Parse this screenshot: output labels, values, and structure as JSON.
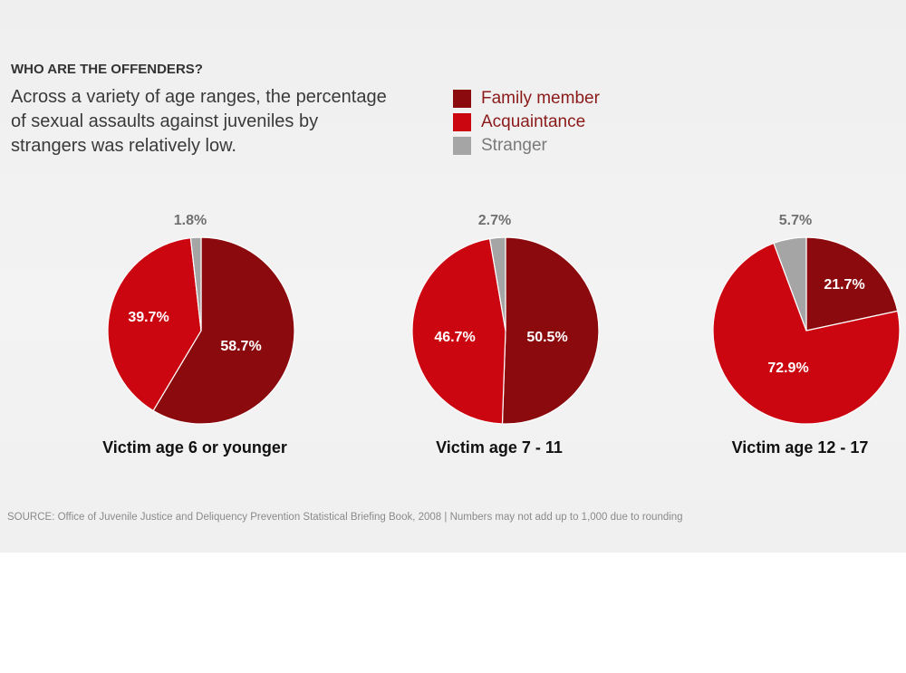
{
  "header": {
    "kicker": "WHO ARE THE OFFENDERS?",
    "subtitle": "Across a variety of age ranges, the percentage of sexual assaults against juveniles by strangers was relatively low."
  },
  "source": "SOURCE: Office of Juvenile Justice and Deliquency Prevention Statistical Briefing Book, 2008 | Numbers may not add up to 1,000 due to rounding",
  "colors": {
    "family": "#8b0a0d",
    "acquaintance": "#cc0611",
    "stranger": "#a5a5a5",
    "legend_text": "#8b1a1a",
    "stranger_text": "#7a7a7a",
    "label_text": "#ffffff",
    "outside_label": "#707070"
  },
  "chart_data": [
    {
      "type": "pie",
      "title": "Victim age 6 or younger",
      "labels": [
        "Family member",
        "Acquaintance",
        "Stranger"
      ],
      "values": [
        58.7,
        39.7,
        1.8
      ],
      "value_labels": [
        "58.7%",
        "39.7%",
        "1.8%"
      ]
    },
    {
      "type": "pie",
      "title": "Victim age 7 - 11",
      "labels": [
        "Family member",
        "Acquaintance",
        "Stranger"
      ],
      "values": [
        50.5,
        46.7,
        2.7
      ],
      "value_labels": [
        "50.5%",
        "46.7%",
        "2.7%"
      ]
    },
    {
      "type": "pie",
      "title": "Victim age 12 - 17",
      "labels": [
        "Family member",
        "Acquaintance",
        "Stranger"
      ],
      "values": [
        21.7,
        72.9,
        5.7
      ],
      "value_labels": [
        "21.7%",
        "72.9%",
        "5.7%"
      ]
    }
  ]
}
